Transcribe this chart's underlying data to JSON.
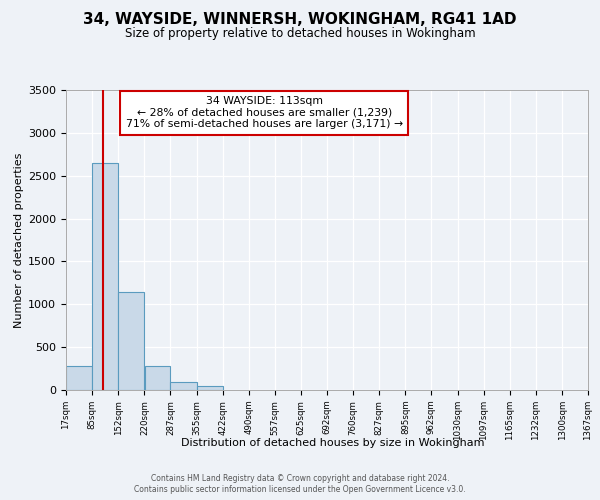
{
  "title": "34, WAYSIDE, WINNERSH, WOKINGHAM, RG41 1AD",
  "subtitle": "Size of property relative to detached houses in Wokingham",
  "xlabel": "Distribution of detached houses by size in Wokingham",
  "ylabel": "Number of detached properties",
  "bar_color": "#c9d9e8",
  "bar_edge_color": "#5a9bbf",
  "bin_edges": [
    17,
    85,
    152,
    220,
    287,
    355,
    422,
    490,
    557,
    625,
    692,
    760,
    827,
    895,
    962,
    1030,
    1097,
    1165,
    1232,
    1300,
    1367
  ],
  "bin_labels": [
    "17sqm",
    "85sqm",
    "152sqm",
    "220sqm",
    "287sqm",
    "355sqm",
    "422sqm",
    "490sqm",
    "557sqm",
    "625sqm",
    "692sqm",
    "760sqm",
    "827sqm",
    "895sqm",
    "962sqm",
    "1030sqm",
    "1097sqm",
    "1165sqm",
    "1232sqm",
    "1300sqm",
    "1367sqm"
  ],
  "bar_heights": [
    280,
    2650,
    1140,
    285,
    90,
    45,
    0,
    0,
    0,
    0,
    0,
    0,
    0,
    0,
    0,
    0,
    0,
    0,
    0,
    0
  ],
  "ylim": [
    0,
    3500
  ],
  "yticks": [
    0,
    500,
    1000,
    1500,
    2000,
    2500,
    3000,
    3500
  ],
  "red_line_x": 113,
  "annotation_title": "34 WAYSIDE: 113sqm",
  "annotation_line1": "← 28% of detached houses are smaller (1,239)",
  "annotation_line2": "71% of semi-detached houses are larger (3,171) →",
  "footer1": "Contains HM Land Registry data © Crown copyright and database right 2024.",
  "footer2": "Contains public sector information licensed under the Open Government Licence v3.0.",
  "bg_color": "#eef2f7",
  "grid_color": "#ffffff",
  "red_line_color": "#cc0000",
  "annotation_box_color": "#ffffff",
  "annotation_box_edge_color": "#cc0000"
}
